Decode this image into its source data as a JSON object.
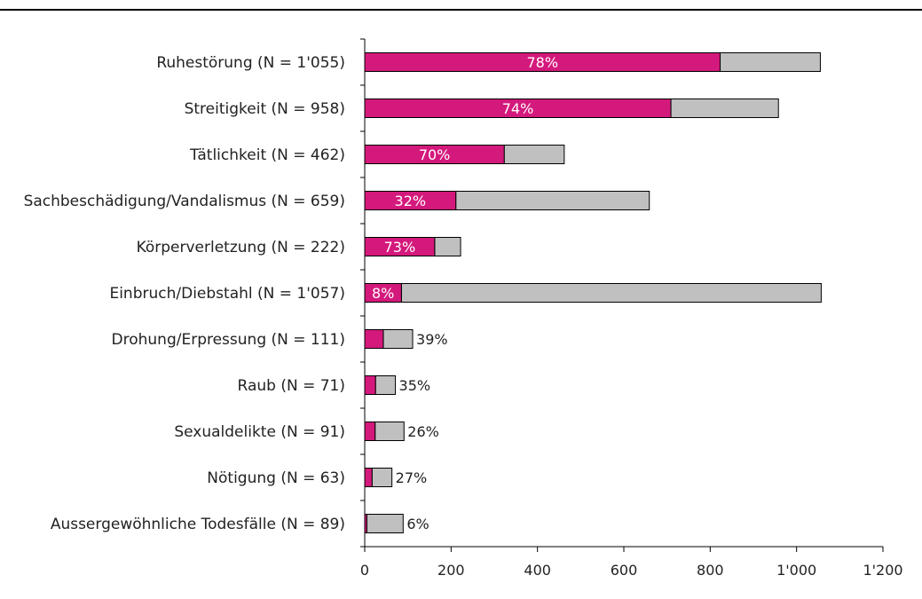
{
  "chart_data": {
    "type": "bar",
    "stacked": true,
    "orientation": "horizontal",
    "categories": [
      "Ruhestörung (N = 1'055)",
      "Streitigkeit (N = 958)",
      "Tätlichkeit (N = 462)",
      "Sachbeschädigung/Vandalismus (N = 659)",
      "Körperverletzung (N = 222)",
      "Einbruch/Diebstahl (N = 1'057)",
      "Drohung/Erpressung (N = 111)",
      "Raub (N = 71)",
      "Sexualdelikte (N = 91)",
      "Nötigung (N = 63)",
      "Aussergewöhnliche Todesfälle (N = 89)"
    ],
    "totals": [
      1055,
      958,
      462,
      659,
      222,
      1057,
      111,
      71,
      91,
      63,
      89
    ],
    "percent_labels": [
      "78%",
      "74%",
      "70%",
      "32%",
      "73%",
      "8%",
      "39%",
      "35%",
      "26%",
      "27%",
      "6%"
    ],
    "series": [
      {
        "values": [
          823,
          709,
          323,
          211,
          162,
          85,
          43,
          25,
          24,
          17,
          5
        ]
      },
      {
        "values": [
          232,
          249,
          139,
          448,
          60,
          972,
          68,
          46,
          67,
          46,
          84
        ]
      }
    ],
    "xlim": [
      0,
      1200
    ],
    "xticks": [
      0,
      200,
      400,
      600,
      800,
      1000,
      1200
    ],
    "xtick_labels": [
      "0",
      "200",
      "400",
      "600",
      "800",
      "1'000",
      "1'200"
    ],
    "grid": false,
    "colors": {
      "primary": "#D4197C",
      "remainder": "#C0C0C0",
      "outline": "#000000",
      "axis": "#000000"
    }
  }
}
